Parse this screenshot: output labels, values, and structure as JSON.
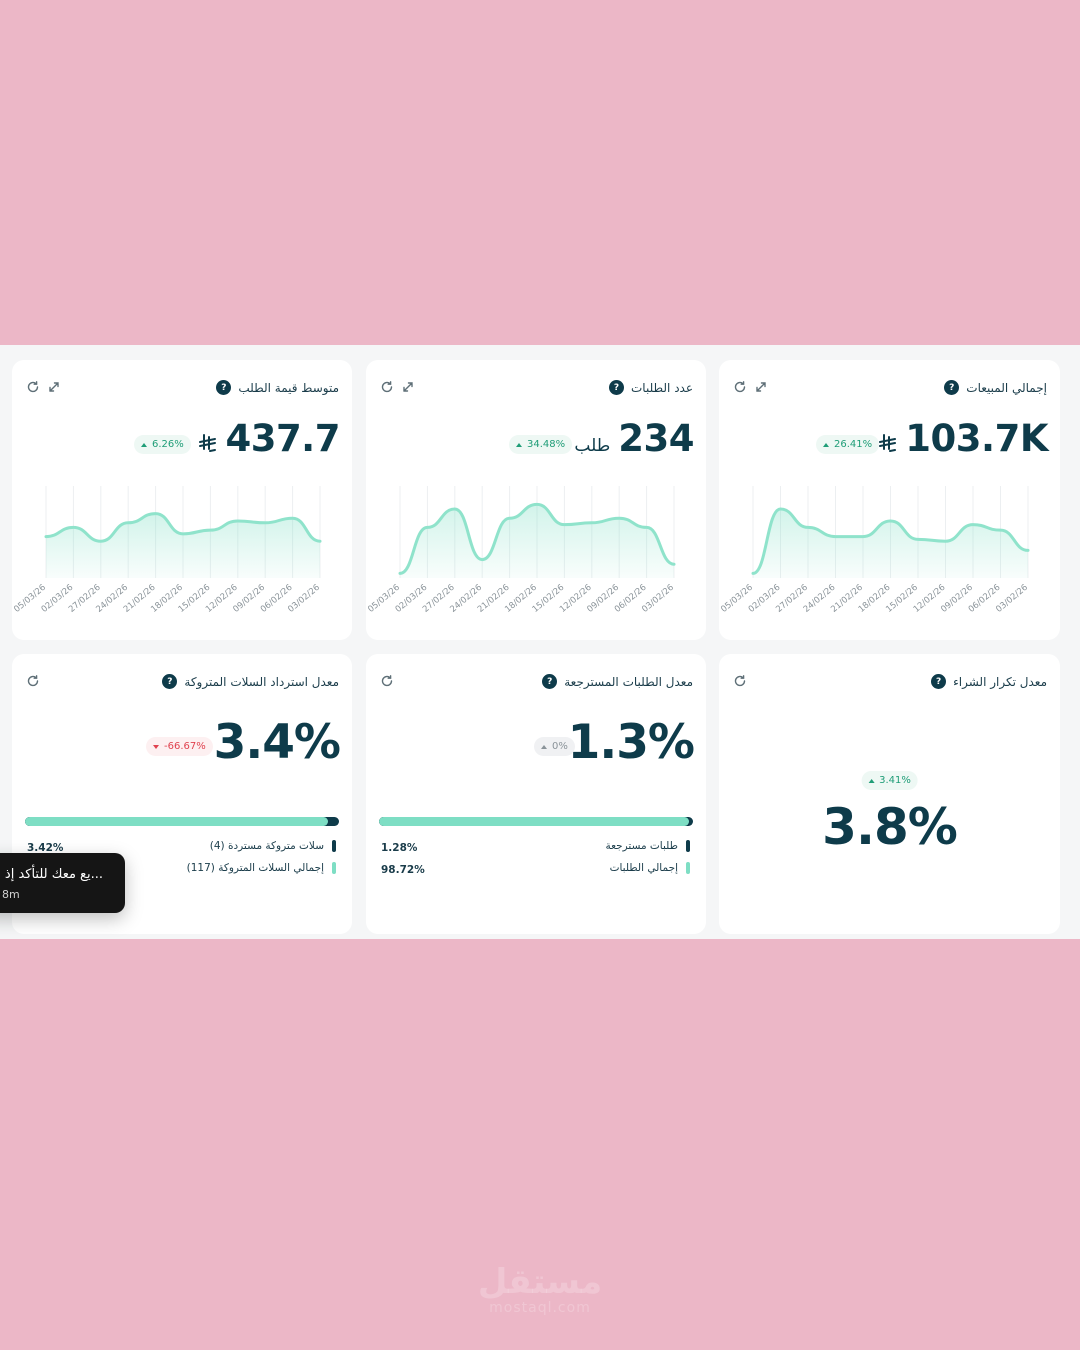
{
  "cards": {
    "total_sales": {
      "title": "إجمالي المبيعات",
      "value": "103.7K",
      "change": "26.41%"
    },
    "orders_count": {
      "title": "عدد الطلبات",
      "value": "234",
      "unit": "طلب",
      "change": "34.48%"
    },
    "avg_order_value": {
      "title": "متوسط قيمة الطلب",
      "value": "437.7",
      "change": "6.26%"
    },
    "repeat_purchase": {
      "title": "معدل تكرار الشراء",
      "value": "3.8%",
      "change": "3.41%"
    },
    "returned_orders": {
      "title": "معدل الطلبات المسترجعة",
      "value": "1.3%",
      "change": "0%",
      "fill_fraction": 0.9872,
      "legend": [
        {
          "label": "طلبات مسترجعة",
          "pct": "1.28%",
          "color": "#0e3b4a"
        },
        {
          "label": "إجمالي الطلبات",
          "pct": "98.72%",
          "color": "#7edec4"
        }
      ]
    },
    "abandoned_recovery": {
      "title": "معدل استرداد السلات المتروكة",
      "value": "3.4%",
      "change": "-66.67%",
      "fill_fraction": 0.9658,
      "legend": [
        {
          "label": "سلات متروكة مستردة (4)",
          "pct": "3.42%",
          "color": "#0e3b4a"
        },
        {
          "label": "إجمالي السلات المتروكة (117)",
          "pct": "",
          "color": "#7edec4"
        }
      ]
    }
  },
  "date_ticks": [
    "05/03/26",
    "02/03/26",
    "27/02/26",
    "24/02/26",
    "21/02/26",
    "18/02/26",
    "15/02/26",
    "12/02/26",
    "09/02/26",
    "06/02/26",
    "03/02/26"
  ],
  "chart_data": [
    {
      "type": "area",
      "x": [
        "03/02/26",
        "06/02/26",
        "09/02/26",
        "12/02/26",
        "15/02/26",
        "18/02/26",
        "21/02/26",
        "24/02/26",
        "27/02/26",
        "02/03/26",
        "05/03/26"
      ],
      "values": [
        30,
        52,
        58,
        40,
        42,
        62,
        45,
        45,
        55,
        75,
        5
      ]
    },
    {
      "type": "area",
      "x": [
        "03/02/26",
        "06/02/26",
        "09/02/26",
        "12/02/26",
        "15/02/26",
        "18/02/26",
        "21/02/26",
        "24/02/26",
        "27/02/26",
        "02/03/26",
        "05/03/26"
      ],
      "values": [
        15,
        55,
        65,
        60,
        58,
        80,
        65,
        20,
        75,
        55,
        5
      ]
    },
    {
      "type": "area",
      "x": [
        "03/02/26",
        "06/02/26",
        "09/02/26",
        "12/02/26",
        "15/02/26",
        "18/02/26",
        "21/02/26",
        "24/02/26",
        "27/02/26",
        "02/03/26",
        "05/03/26"
      ],
      "values": [
        40,
        65,
        60,
        62,
        52,
        48,
        70,
        60,
        40,
        55,
        45
      ]
    }
  ],
  "toast": {
    "message": "...يع معك للتأكد إذ",
    "time": "8m"
  },
  "watermark": {
    "logo": "مستقل",
    "url": "mostaql.com"
  },
  "colors": {
    "primary": "#0e3b4a",
    "accent": "#7edec4",
    "up": "#1f9d77",
    "down": "#e0424f"
  }
}
